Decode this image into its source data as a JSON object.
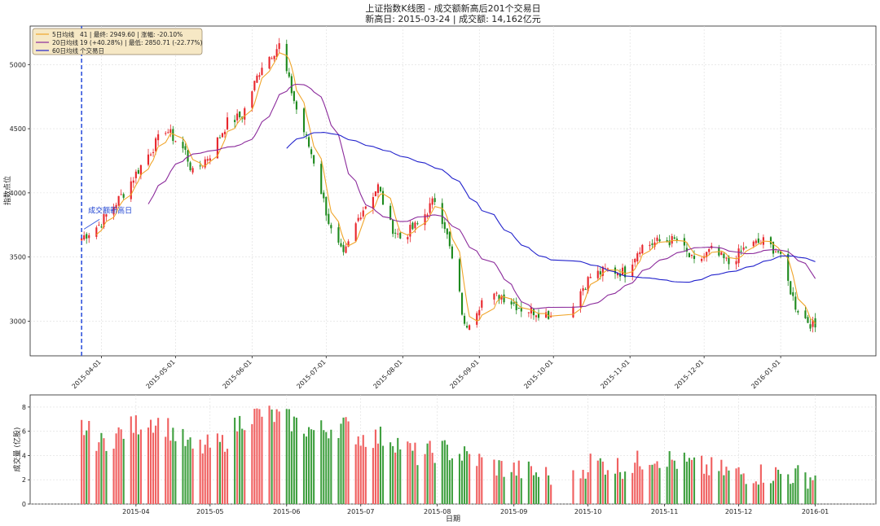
{
  "chart_data": [
    {
      "type": "candlestick",
      "title_line1": "上证指数K线图 - 成交额新高后201个交易日",
      "title_line2": "新高日: 2015-03-24 | 成交额: 14,162亿元",
      "ylabel": "指数点位",
      "ylim": [
        2730,
        5300
      ],
      "yticks": [
        3000,
        3500,
        4000,
        4500,
        5000
      ],
      "xticks": [
        "2015-04-01",
        "2015-05-01",
        "2015-06-01",
        "2015-07-01",
        "2015-08-01",
        "2015-09-01",
        "2015-10-01",
        "2015-11-01",
        "2015-12-01",
        "2016-01-01"
      ],
      "x_range": [
        "2015-03-19",
        "2016-01-29"
      ],
      "grid": true,
      "legend": [
        "5日均线",
        "20日均线",
        "60日均线"
      ],
      "legend_placement": "top-left",
      "info_box_lines": [
        "41 | 最终: 2949.60 | 涨幅: -20.10%",
        "19 (+40.28%) | 最低: 2850.71 (-22.77%)",
        "个交易日"
      ],
      "annotation": {
        "text": "成交额新高日",
        "date": "2015-03-24",
        "value": 3705
      },
      "series_colors": {
        "up": "#e8262c",
        "down": "#1e8a1e",
        "ma5": "#f0a52a",
        "ma20": "#8b2a9b",
        "ma60": "#2222cc",
        "marker": "#3355dd"
      },
      "close_keypoints": [
        [
          "2015-03-24",
          3650
        ],
        [
          "2015-03-31",
          3750
        ],
        [
          "2015-04-10",
          4000
        ],
        [
          "2015-04-20",
          4300
        ],
        [
          "2015-04-27",
          4500
        ],
        [
          "2015-05-05",
          4320
        ],
        [
          "2015-05-08",
          4150
        ],
        [
          "2015-05-15",
          4300
        ],
        [
          "2015-05-22",
          4550
        ],
        [
          "2015-05-28",
          4600
        ],
        [
          "2015-06-05",
          5000
        ],
        [
          "2015-06-12",
          5150
        ],
        [
          "2015-06-19",
          4650
        ],
        [
          "2015-06-26",
          4250
        ],
        [
          "2015-07-03",
          3700
        ],
        [
          "2015-07-08",
          3500
        ],
        [
          "2015-07-15",
          3850
        ],
        [
          "2015-07-22",
          4050
        ],
        [
          "2015-07-27",
          3750
        ],
        [
          "2015-07-31",
          3650
        ],
        [
          "2015-08-07",
          3750
        ],
        [
          "2015-08-14",
          3950
        ],
        [
          "2015-08-18",
          3750
        ],
        [
          "2015-08-24",
          3200
        ],
        [
          "2015-08-26",
          2950
        ],
        [
          "2015-09-02",
          3160
        ],
        [
          "2015-09-10",
          3200
        ],
        [
          "2015-09-18",
          3100
        ],
        [
          "2015-09-30",
          3050
        ],
        [
          "2015-10-09",
          3150
        ],
        [
          "2015-10-16",
          3350
        ],
        [
          "2015-10-23",
          3400
        ],
        [
          "2015-10-30",
          3380
        ],
        [
          "2015-11-05",
          3580
        ],
        [
          "2015-11-13",
          3620
        ],
        [
          "2015-11-20",
          3630
        ],
        [
          "2015-11-27",
          3450
        ],
        [
          "2015-12-04",
          3550
        ],
        [
          "2015-12-11",
          3450
        ],
        [
          "2015-12-18",
          3580
        ],
        [
          "2015-12-25",
          3620
        ],
        [
          "2015-12-31",
          3540
        ],
        [
          "2016-01-04",
          3300
        ],
        [
          "2016-01-07",
          3120
        ],
        [
          "2016-01-11",
          3020
        ],
        [
          "2016-01-15",
          2950
        ]
      ]
    },
    {
      "type": "bar",
      "xlabel": "日期",
      "ylabel": "成交量 (亿股)",
      "ylim": [
        0,
        9
      ],
      "yticks": [
        0,
        2,
        4,
        6,
        8
      ],
      "xticks": [
        "2015-04",
        "2015-05",
        "2015-06",
        "2015-07",
        "2015-08",
        "2015-09",
        "2015-10",
        "2015-11",
        "2015-12",
        "2016-01"
      ],
      "volume_keypoints": [
        [
          "2015-03-24",
          6.4
        ],
        [
          "2015-04-01",
          5.0
        ],
        [
          "2015-04-10",
          6.0
        ],
        [
          "2015-04-20",
          7.0
        ],
        [
          "2015-04-27",
          6.5
        ],
        [
          "2015-05-08",
          4.5
        ],
        [
          "2015-05-20",
          5.0
        ],
        [
          "2015-05-28",
          7.0
        ],
        [
          "2015-06-05",
          7.5
        ],
        [
          "2015-06-15",
          7.0
        ],
        [
          "2015-06-26",
          6.0
        ],
        [
          "2015-07-08",
          6.5
        ],
        [
          "2015-07-15",
          5.5
        ],
        [
          "2015-07-27",
          5.5
        ],
        [
          "2015-08-07",
          4.0
        ],
        [
          "2015-08-17",
          4.5
        ],
        [
          "2015-08-26",
          4.0
        ],
        [
          "2015-09-10",
          3.0
        ],
        [
          "2015-09-25",
          2.5
        ],
        [
          "2015-10-09",
          2.0
        ],
        [
          "2015-10-16",
          3.5
        ],
        [
          "2015-10-30",
          3.0
        ],
        [
          "2015-11-10",
          4.0
        ],
        [
          "2015-11-20",
          3.5
        ],
        [
          "2015-12-01",
          3.0
        ],
        [
          "2015-12-15",
          2.5
        ],
        [
          "2015-12-31",
          2.5
        ],
        [
          "2016-01-15",
          2.2
        ]
      ],
      "gaps": [
        [
          "2015-09-03",
          "2015-09-04"
        ],
        [
          "2015-10-01",
          "2015-10-08"
        ]
      ]
    }
  ]
}
